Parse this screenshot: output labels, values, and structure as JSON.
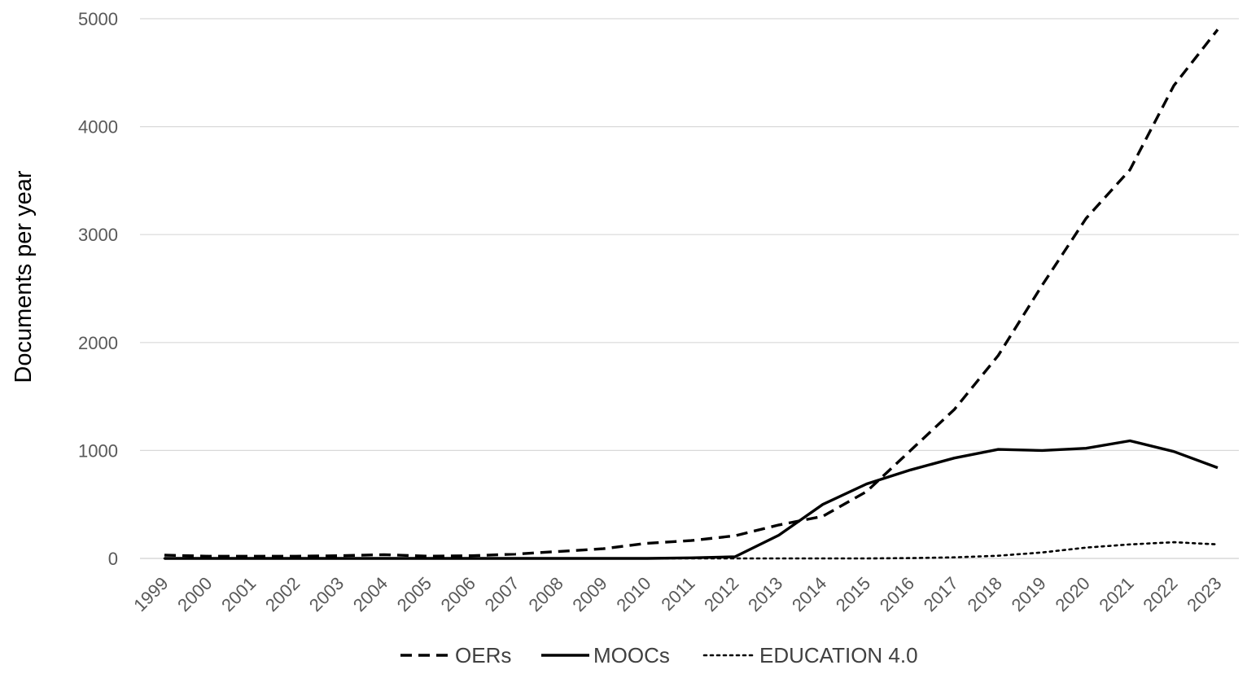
{
  "chart_data": {
    "type": "line",
    "title": "",
    "xlabel": "",
    "ylabel": "Documents per year",
    "ylim": [
      0,
      5000
    ],
    "yticks": [
      "0",
      "1000",
      "2000",
      "3000",
      "4000",
      "5000"
    ],
    "grid": true,
    "legend_position": "bottom",
    "categories": [
      "1999",
      "2000",
      "2001",
      "2002",
      "2003",
      "2004",
      "2005",
      "2006",
      "2007",
      "2008",
      "2009",
      "2010",
      "2011",
      "2012",
      "2013",
      "2014",
      "2015",
      "2016",
      "2017",
      "2018",
      "2019",
      "2020",
      "2021",
      "2022",
      "2023"
    ],
    "series": [
      {
        "name": "OERs",
        "style": "dashed",
        "color": "#000000",
        "values": [
          30,
          20,
          20,
          20,
          25,
          35,
          20,
          25,
          40,
          65,
          90,
          140,
          165,
          210,
          310,
          390,
          620,
          1000,
          1380,
          1880,
          2530,
          3150,
          3600,
          4380,
          4900
        ]
      },
      {
        "name": "MOOCs",
        "style": "solid",
        "color": "#000000",
        "values": [
          0,
          0,
          0,
          0,
          0,
          0,
          0,
          0,
          0,
          0,
          0,
          0,
          5,
          15,
          215,
          500,
          690,
          820,
          930,
          1010,
          1000,
          1020,
          1090,
          990,
          840
        ]
      },
      {
        "name": "EDUCATION 4.0",
        "style": "dotted",
        "color": "#000000",
        "values": [
          0,
          0,
          0,
          0,
          0,
          0,
          0,
          0,
          0,
          0,
          0,
          0,
          0,
          0,
          0,
          0,
          0,
          3,
          10,
          25,
          55,
          100,
          130,
          150,
          130
        ]
      }
    ],
    "colors": {
      "grid": "#d9d9d9",
      "tick_text": "#595959",
      "legend_text": "#404040",
      "line": "#000000"
    }
  }
}
